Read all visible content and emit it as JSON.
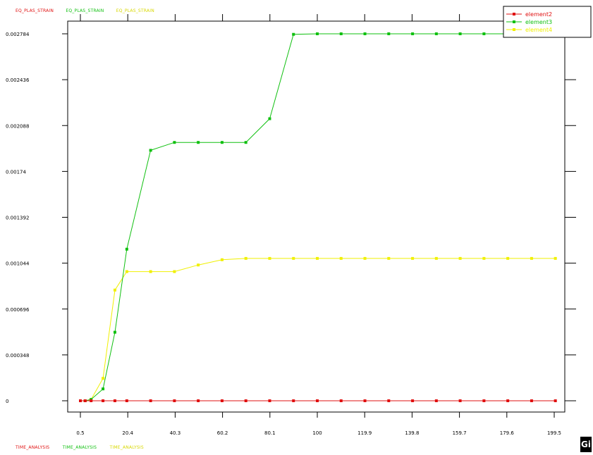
{
  "header": {
    "y_titles": [
      {
        "text": "EQ_PLAS_STRAIN",
        "color": "#e01010"
      },
      {
        "text": "EQ_PLAS_STRAIN",
        "color": "#10c010"
      },
      {
        "text": "EQ_PLAS_STRAIN",
        "color": "#d8d800"
      }
    ],
    "x_titles": [
      {
        "text": "TIME_ANALYSIS",
        "color": "#e01010"
      },
      {
        "text": "TIME_ANALYSIS",
        "color": "#10c010"
      },
      {
        "text": "TIME_ANALYSIS",
        "color": "#d8d800"
      }
    ]
  },
  "logo_text": "Gi",
  "chart_data": {
    "type": "line",
    "title": "",
    "xlabel": "TIME_ANALYSIS",
    "ylabel": "EQ_PLAS_STRAIN",
    "xlim": [
      0.5,
      199.5
    ],
    "ylim": [
      0,
      0.002784
    ],
    "x_ticks": [
      "0.5",
      "20.4",
      "40.3",
      "60.2",
      "80.1",
      "100",
      "119.9",
      "139.8",
      "159.7",
      "179.6",
      "199.5"
    ],
    "y_ticks": [
      "0",
      "0.000348",
      "0.000696",
      "0.001044",
      "0.001392",
      "0.00174",
      "0.002088",
      "0.002436",
      "0.002784"
    ],
    "legend": {
      "position": "top-right",
      "box": true
    },
    "series": [
      {
        "name": "element2",
        "color": "#e01010",
        "x": [
          0.5,
          2.5,
          5,
          10,
          15,
          20,
          30,
          40,
          50,
          60,
          70,
          80,
          90,
          100,
          110,
          120,
          130,
          140,
          150,
          160,
          170,
          180,
          190,
          200
        ],
        "y": [
          0,
          0,
          0,
          0,
          0,
          0,
          0,
          0,
          0,
          0,
          0,
          0,
          0,
          0,
          0,
          0,
          0,
          0,
          0,
          0,
          0,
          0,
          0,
          0
        ]
      },
      {
        "name": "element3",
        "color": "#10c010",
        "x": [
          0.5,
          2.5,
          5,
          10,
          15,
          20,
          30,
          40,
          50,
          60,
          70,
          80,
          90,
          100,
          110,
          120,
          130,
          140,
          150,
          160,
          170,
          180,
          190,
          200
        ],
        "y": [
          0,
          0,
          1e-05,
          9e-05,
          0.00052,
          0.00115,
          0.0019,
          0.00196,
          0.00196,
          0.00196,
          0.00196,
          0.00214,
          0.00278,
          0.002784,
          0.002784,
          0.002784,
          0.002784,
          0.002784,
          0.002784,
          0.002784,
          0.002784,
          0.002784,
          0.002784,
          0.002784
        ]
      },
      {
        "name": "element4",
        "color": "#f0f000",
        "x": [
          0.5,
          2.5,
          5,
          10,
          15,
          20,
          30,
          40,
          50,
          60,
          70,
          80,
          90,
          100,
          110,
          120,
          130,
          140,
          150,
          160,
          170,
          180,
          190,
          200
        ],
        "y": [
          0,
          0,
          1e-05,
          0.00017,
          0.00084,
          0.00098,
          0.00098,
          0.00098,
          0.00103,
          0.00107,
          0.00108,
          0.00108,
          0.00108,
          0.00108,
          0.00108,
          0.00108,
          0.00108,
          0.00108,
          0.00108,
          0.00108,
          0.00108,
          0.00108,
          0.00108,
          0.00108
        ]
      }
    ]
  }
}
